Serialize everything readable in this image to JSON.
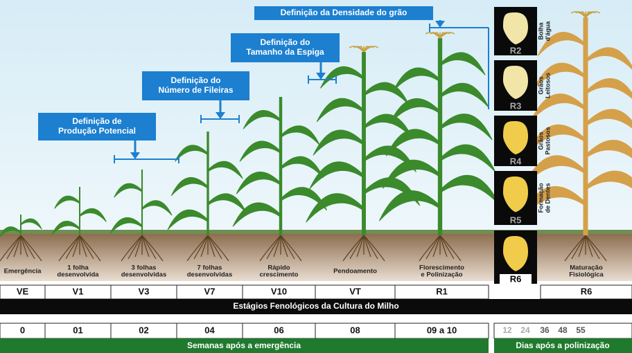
{
  "callouts": [
    {
      "lines": [
        "Definição de",
        "Produção Potencial"
      ]
    },
    {
      "lines": [
        "Definição do",
        "Número de Fileiras"
      ]
    },
    {
      "lines": [
        "Definição do",
        "Tamanho da Espiga"
      ]
    },
    {
      "lines": [
        "Definição da Densidade do grão"
      ]
    }
  ],
  "kernels": [
    {
      "code": "R2",
      "lines": [
        "Bolha",
        "d'água"
      ]
    },
    {
      "code": "R3",
      "lines": [
        "Grãos",
        "Leitosos"
      ]
    },
    {
      "code": "R4",
      "lines": [
        "Grãos",
        "Pastosos"
      ]
    },
    {
      "code": "R5",
      "lines": [
        "Formação",
        "de Dentes"
      ]
    },
    {
      "code": "R6",
      "lines": []
    }
  ],
  "stages": [
    {
      "code": "VE",
      "lines": [
        "Emergência"
      ]
    },
    {
      "code": "V1",
      "lines": [
        "1 folha",
        "desenvolvida"
      ]
    },
    {
      "code": "V3",
      "lines": [
        "3 folhas",
        "desenvolvidas"
      ]
    },
    {
      "code": "V7",
      "lines": [
        "7 folhas",
        "desenvolvidas"
      ]
    },
    {
      "code": "V10",
      "lines": [
        "Rápido",
        "crescimento"
      ]
    },
    {
      "code": "VT",
      "lines": [
        "Pendoamento"
      ]
    },
    {
      "code": "R1",
      "lines": [
        "Florescimento",
        "e Polinização"
      ]
    },
    {
      "code": "R6",
      "lines": [
        "Maturação",
        "Fisiológica"
      ]
    }
  ],
  "stages_title": "Estágios Fenológicos da Cultura do Milho",
  "weeks": [
    "0",
    "01",
    "02",
    "04",
    "06",
    "08",
    "09 a 10"
  ],
  "weeks_title": "Semanas após a emergência",
  "days": [
    "12",
    "24",
    "36",
    "48",
    "55"
  ],
  "days_title": "Dias após a polinização"
}
